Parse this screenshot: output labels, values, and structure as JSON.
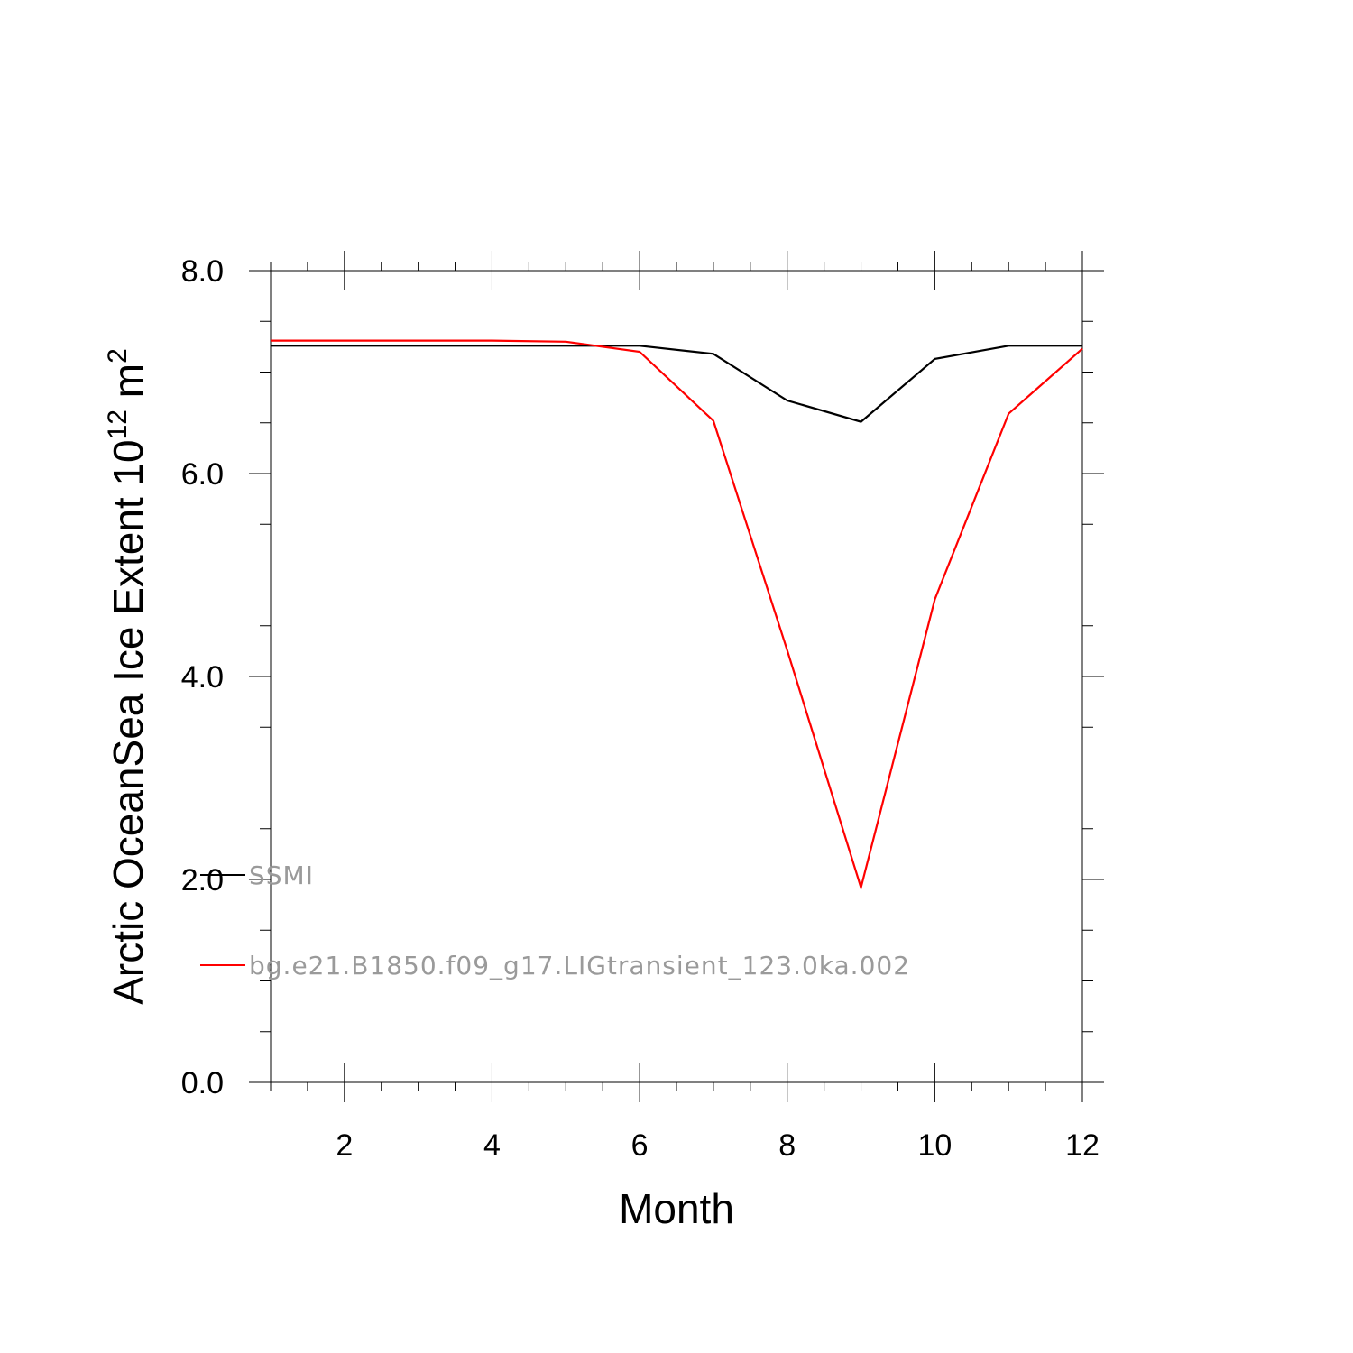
{
  "chart_data": {
    "type": "line",
    "xlabel": "Month",
    "ylabel_main": "Arctic OceanSea Ice Extent 10",
    "ylabel_sup": "12",
    "ylabel_unit": "m",
    "ylabel_unit_sup": "2",
    "xlim": [
      1,
      12
    ],
    "ylim": [
      0,
      8
    ],
    "x_ticks": [
      2,
      4,
      6,
      8,
      10,
      12
    ],
    "x_tick_labels": [
      "2",
      "4",
      "6",
      "8",
      "10",
      "12"
    ],
    "y_ticks": [
      0,
      2,
      4,
      6,
      8
    ],
    "y_tick_labels": [
      "0.0",
      "2.0",
      "4.0",
      "6.0",
      "8.0"
    ],
    "x": [
      1,
      2,
      3,
      4,
      5,
      6,
      7,
      8,
      9,
      10,
      11,
      12
    ],
    "grid": false,
    "legend_position": "lower-left",
    "series": [
      {
        "name": "SSMI",
        "color": "#000000",
        "values": [
          7.26,
          7.26,
          7.26,
          7.26,
          7.26,
          7.26,
          7.18,
          6.72,
          6.51,
          7.13,
          7.26,
          7.26
        ]
      },
      {
        "name": "bg.e21.B1850.f09_g17.LIGtransient_123.0ka.002",
        "color": "#ff0000",
        "values": [
          7.31,
          7.31,
          7.31,
          7.31,
          7.3,
          7.2,
          6.52,
          4.26,
          1.92,
          4.76,
          6.59,
          7.23
        ]
      }
    ]
  }
}
